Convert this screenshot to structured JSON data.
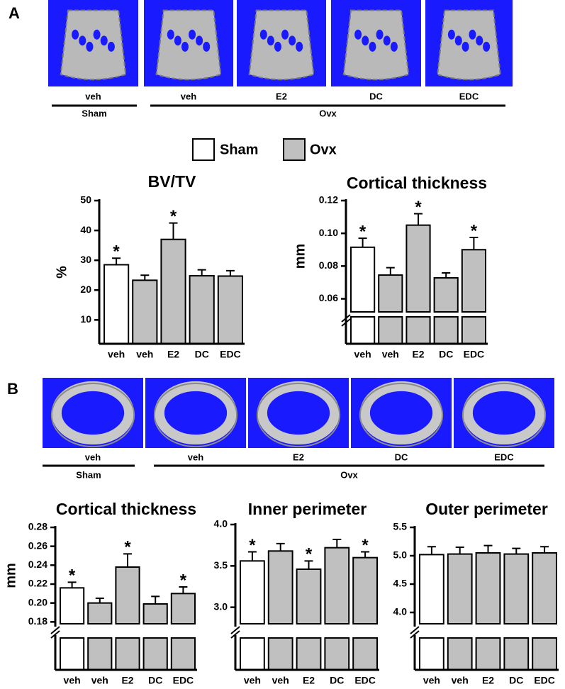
{
  "panels": [
    {
      "label": "A",
      "image_labels": [
        "veh",
        "veh",
        "E2",
        "DC",
        "EDC"
      ],
      "groups": [
        "Sham",
        "Ovx"
      ]
    },
    {
      "label": "B",
      "image_labels": [
        "veh",
        "veh",
        "E2",
        "DC",
        "EDC"
      ],
      "groups": [
        "Sham",
        "Ovx"
      ]
    }
  ],
  "legend": [
    {
      "name": "Sham",
      "color": "#ffffff"
    },
    {
      "name": "Ovx",
      "color": "#c0c0c0"
    }
  ],
  "chart_data": [
    {
      "type": "bar",
      "title": "BV/TV",
      "ylabel": "%",
      "categories": [
        "veh",
        "veh",
        "E2",
        "DC",
        "EDC"
      ],
      "values": [
        28.5,
        23.3,
        37,
        24.8,
        24.7
      ],
      "errors": [
        2.2,
        1.7,
        5.5,
        2,
        1.8
      ],
      "colors": [
        "#ffffff",
        "#c0c0c0",
        "#c0c0c0",
        "#c0c0c0",
        "#c0c0c0"
      ],
      "significance": [
        "*",
        null,
        "*",
        null,
        null
      ],
      "ylim": [
        2,
        50
      ],
      "yticks": [
        10,
        20,
        30,
        40,
        50
      ],
      "axis_break": false
    },
    {
      "type": "bar",
      "title": "Cortical thickness",
      "ylabel": "mm",
      "categories": [
        "veh",
        "veh",
        "E2",
        "DC",
        "EDC"
      ],
      "values": [
        0.0915,
        0.0745,
        0.105,
        0.0728,
        0.09
      ],
      "errors": [
        0.0055,
        0.0045,
        0.007,
        0.003,
        0.0075
      ],
      "colors": [
        "#ffffff",
        "#c0c0c0",
        "#c0c0c0",
        "#c0c0c0",
        "#c0c0c0"
      ],
      "significance": [
        "*",
        null,
        "*",
        null,
        "*"
      ],
      "ylim": [
        0.052,
        0.12
      ],
      "yticks": [
        0.06,
        0.08,
        {
          "value": 0.1,
          "label": "0.10"
        },
        0.12
      ],
      "axis_break": true
    },
    {
      "type": "bar",
      "title": "Cortical thickness",
      "ylabel": "mm",
      "categories": [
        "veh",
        "veh",
        "E2",
        "DC",
        "EDC"
      ],
      "values": [
        0.216,
        0.2,
        0.238,
        0.199,
        0.21
      ],
      "errors": [
        0.006,
        0.005,
        0.014,
        0.008,
        0.007
      ],
      "colors": [
        "#ffffff",
        "#c0c0c0",
        "#c0c0c0",
        "#c0c0c0",
        "#c0c0c0"
      ],
      "significance": [
        "*",
        null,
        "*",
        null,
        "*"
      ],
      "ylim": [
        0.178,
        0.28
      ],
      "yticks": [
        0.18,
        {
          "value": 0.2,
          "label": "0.20"
        },
        0.22,
        0.24,
        0.26,
        0.28
      ],
      "axis_break": true
    },
    {
      "type": "bar",
      "title": "Inner perimeter",
      "ylabel": null,
      "categories": [
        "veh",
        "veh",
        "E2",
        "DC",
        "EDC"
      ],
      "values": [
        3.56,
        3.68,
        3.46,
        3.72,
        3.6
      ],
      "errors": [
        0.11,
        0.09,
        0.1,
        0.1,
        0.07
      ],
      "colors": [
        "#ffffff",
        "#c0c0c0",
        "#c0c0c0",
        "#c0c0c0",
        "#c0c0c0"
      ],
      "significance": [
        "*",
        null,
        "*",
        null,
        "*"
      ],
      "ylim": [
        2.8,
        4.0
      ],
      "yticks": [
        {
          "value": 3,
          "label": "3.0"
        },
        3.5,
        {
          "value": 4,
          "label": "4.0"
        }
      ],
      "axis_break": true
    },
    {
      "type": "bar",
      "title": "Outer perimeter",
      "ylabel": null,
      "categories": [
        "veh",
        "veh",
        "E2",
        "DC",
        "EDC"
      ],
      "values": [
        5.02,
        5.03,
        5.05,
        5.03,
        5.05
      ],
      "errors": [
        0.14,
        0.12,
        0.13,
        0.1,
        0.11
      ],
      "colors": [
        "#ffffff",
        "#c0c0c0",
        "#c0c0c0",
        "#c0c0c0",
        "#c0c0c0"
      ],
      "significance": [
        null,
        null,
        null,
        null,
        null
      ],
      "ylim": [
        3.8,
        5.5
      ],
      "yticks": [
        {
          "value": 4,
          "label": "4.0"
        },
        4.5,
        {
          "value": 5,
          "label": "5.0"
        },
        5.5
      ],
      "axis_break": true
    }
  ]
}
